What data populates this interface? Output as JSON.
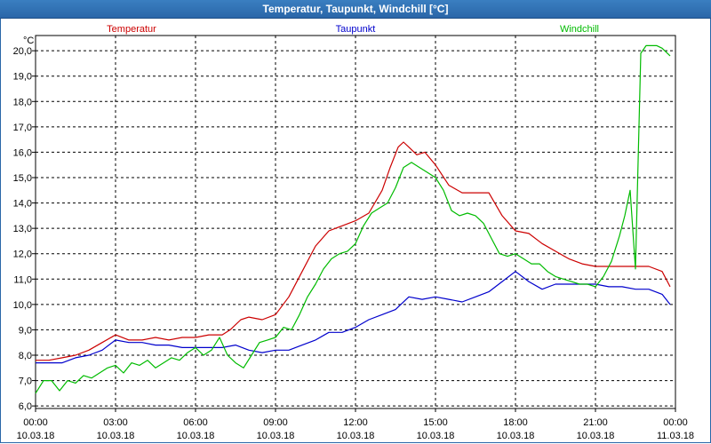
{
  "window": {
    "title": "Temperatur, Taupunkt, Windchill [°C]"
  },
  "chart_data": {
    "type": "line",
    "title": "Temperatur, Taupunkt, Windchill [°C]",
    "ylabel": "°C",
    "ylim": [
      5.9,
      20.6
    ],
    "yticks": [
      6.0,
      7.0,
      8.0,
      9.0,
      10.0,
      11.0,
      12.0,
      13.0,
      14.0,
      15.0,
      16.0,
      17.0,
      18.0,
      19.0,
      20.0
    ],
    "ytick_labels": [
      "6,0",
      "7,0",
      "8,0",
      "9,0",
      "10,0",
      "11,0",
      "12,0",
      "13,0",
      "14,0",
      "15,0",
      "16,0",
      "17,0",
      "18,0",
      "19,0",
      "20,0"
    ],
    "xlim": [
      0,
      24
    ],
    "xticks": [
      0,
      3,
      6,
      9,
      12,
      15,
      18,
      21,
      24
    ],
    "xtick_time_labels": [
      "00:00",
      "03:00",
      "06:00",
      "09:00",
      "12:00",
      "15:00",
      "18:00",
      "21:00",
      "00:00"
    ],
    "xtick_date_labels": [
      "10.03.18",
      "10.03.18",
      "10.03.18",
      "10.03.18",
      "10.03.18",
      "10.03.18",
      "10.03.18",
      "10.03.18",
      "11.03.18"
    ],
    "grid": true,
    "series": [
      {
        "name": "Temperatur",
        "color": "#cc0000",
        "x": [
          0,
          0.5,
          1.0,
          1.5,
          2.0,
          2.5,
          3.0,
          3.5,
          4.0,
          4.5,
          5.0,
          5.5,
          6.0,
          6.5,
          7.0,
          7.3,
          7.7,
          8.0,
          8.5,
          9.0,
          9.5,
          10.0,
          10.5,
          11.0,
          11.5,
          12.0,
          12.5,
          13.0,
          13.3,
          13.6,
          13.8,
          14.0,
          14.3,
          14.6,
          15.0,
          15.5,
          16.0,
          16.5,
          17.0,
          17.5,
          18.0,
          18.5,
          19.0,
          19.5,
          20.0,
          20.5,
          21.0,
          21.5,
          22.0,
          22.5,
          23.0,
          23.5,
          23.8
        ],
        "values": [
          7.8,
          7.8,
          7.9,
          8.0,
          8.2,
          8.5,
          8.8,
          8.6,
          8.6,
          8.7,
          8.6,
          8.7,
          8.7,
          8.8,
          8.8,
          9.0,
          9.4,
          9.5,
          9.4,
          9.6,
          10.3,
          11.3,
          12.3,
          12.9,
          13.1,
          13.3,
          13.6,
          14.5,
          15.4,
          16.2,
          16.4,
          16.2,
          15.9,
          16.0,
          15.5,
          14.7,
          14.4,
          14.4,
          14.4,
          13.5,
          12.9,
          12.8,
          12.4,
          12.1,
          11.8,
          11.6,
          11.5,
          11.5,
          11.5,
          11.5,
          11.5,
          11.3,
          10.7
        ]
      },
      {
        "name": "Taupunkt",
        "color": "#0000cc",
        "x": [
          0,
          0.5,
          1.0,
          1.5,
          2.0,
          2.5,
          3.0,
          3.5,
          4.0,
          4.5,
          5.0,
          5.5,
          6.0,
          6.5,
          7.0,
          7.5,
          8.0,
          8.5,
          9.0,
          9.5,
          10.0,
          10.5,
          11.0,
          11.5,
          12.0,
          12.5,
          13.0,
          13.5,
          14.0,
          14.5,
          15.0,
          15.5,
          16.0,
          16.5,
          17.0,
          17.5,
          18.0,
          18.5,
          19.0,
          19.5,
          20.0,
          20.5,
          21.0,
          21.5,
          22.0,
          22.5,
          23.0,
          23.5,
          23.8
        ],
        "values": [
          7.7,
          7.7,
          7.7,
          7.9,
          8.0,
          8.2,
          8.6,
          8.5,
          8.5,
          8.4,
          8.4,
          8.3,
          8.3,
          8.3,
          8.3,
          8.4,
          8.2,
          8.1,
          8.2,
          8.2,
          8.4,
          8.6,
          8.9,
          8.9,
          9.1,
          9.4,
          9.6,
          9.8,
          10.3,
          10.2,
          10.3,
          10.2,
          10.1,
          10.3,
          10.5,
          10.9,
          11.3,
          10.9,
          10.6,
          10.8,
          10.8,
          10.8,
          10.8,
          10.7,
          10.7,
          10.6,
          10.6,
          10.4,
          10.0
        ]
      },
      {
        "name": "Windchill",
        "color": "#00bb00",
        "x": [
          0,
          0.3,
          0.6,
          0.9,
          1.2,
          1.5,
          1.8,
          2.1,
          2.4,
          2.7,
          3.0,
          3.3,
          3.6,
          3.9,
          4.2,
          4.5,
          4.8,
          5.1,
          5.4,
          5.7,
          6.0,
          6.3,
          6.6,
          6.9,
          7.2,
          7.5,
          7.8,
          8.1,
          8.4,
          8.7,
          9.0,
          9.3,
          9.6,
          9.9,
          10.2,
          10.5,
          10.8,
          11.1,
          11.4,
          11.7,
          12.0,
          12.3,
          12.6,
          12.9,
          13.2,
          13.5,
          13.8,
          14.1,
          14.4,
          14.7,
          15.0,
          15.3,
          15.6,
          15.9,
          16.2,
          16.5,
          16.8,
          17.1,
          17.4,
          17.7,
          18.0,
          18.3,
          18.6,
          18.9,
          19.2,
          19.5,
          19.8,
          20.1,
          20.4,
          20.7,
          21.0,
          21.3,
          21.6,
          21.9,
          22.1,
          22.3,
          22.5,
          22.7,
          22.9,
          23.1,
          23.3,
          23.5,
          23.8
        ],
        "values": [
          6.5,
          7.0,
          7.0,
          6.6,
          7.0,
          6.9,
          7.2,
          7.1,
          7.3,
          7.5,
          7.6,
          7.3,
          7.7,
          7.6,
          7.8,
          7.5,
          7.7,
          7.9,
          7.8,
          8.1,
          8.3,
          8.0,
          8.2,
          8.7,
          8.0,
          7.7,
          7.5,
          8.0,
          8.5,
          8.6,
          8.7,
          9.1,
          9.0,
          9.6,
          10.3,
          10.8,
          11.4,
          11.8,
          12.0,
          12.1,
          12.4,
          13.1,
          13.6,
          13.8,
          14.0,
          14.6,
          15.4,
          15.6,
          15.4,
          15.2,
          15.0,
          14.5,
          13.7,
          13.5,
          13.6,
          13.5,
          13.2,
          12.6,
          12.0,
          11.9,
          12.0,
          11.8,
          11.6,
          11.6,
          11.3,
          11.1,
          11.0,
          10.9,
          10.8,
          10.8,
          10.7,
          11.1,
          11.7,
          12.7,
          13.5,
          14.5,
          11.4,
          19.9,
          20.2,
          20.2,
          20.2,
          20.1,
          19.8
        ]
      }
    ]
  }
}
